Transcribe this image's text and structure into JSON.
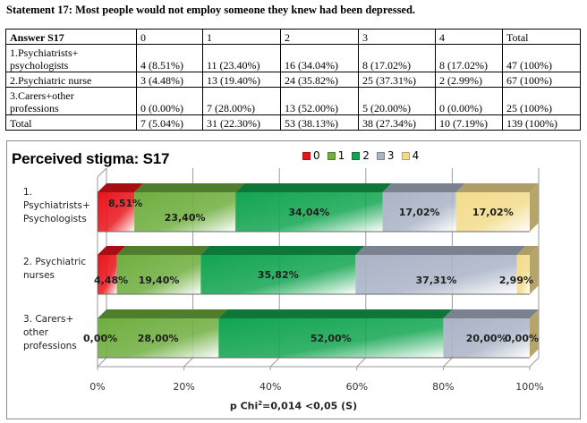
{
  "statement": "Statement 17: Most people would not employ someone they knew had been depressed.",
  "table": {
    "headers": [
      "Answer S17",
      "0",
      "1",
      "2",
      "3",
      "4",
      "Total"
    ],
    "rows": [
      {
        "label_lines": [
          "1.Psychiatrists+",
          "psychologists"
        ],
        "cells": [
          "4 (8.51%)",
          "11 (23.40%)",
          "16 (34.04%)",
          "8 (17.02%)",
          "8 (17.02%)",
          "47 (100%)"
        ]
      },
      {
        "label_lines": [
          "2.Psychiatric nurse"
        ],
        "cells": [
          "3 (4.48%)",
          "13 (19.40%)",
          "24 (35.82%)",
          "25 (37.31%)",
          "2 (2.99%)",
          "67 (100%)"
        ]
      },
      {
        "label_lines": [
          "3.Carers+other",
          "professions"
        ],
        "cells": [
          "0 (0.00%)",
          "7 (28.00%)",
          "13 (52.00%)",
          "5 (20.00%)",
          "0 (0.00%)",
          "25 (100%)"
        ]
      },
      {
        "label_lines": [
          "Total"
        ],
        "cells": [
          "7 (5.04%)",
          "31 (22.30%)",
          "53 (38.13%)",
          "38 (27.34%)",
          "10 (7.19%)",
          "139 (100%)"
        ]
      }
    ]
  },
  "chart_data": {
    "type": "bar",
    "orientation": "horizontal-stacked-100",
    "title": "Perceived stigma: S17",
    "categories": [
      [
        "1.",
        "Psychiatrists+",
        "Psychologists"
      ],
      [
        "2. Psychiatric",
        "nurses"
      ],
      [
        "3. Carers+",
        "other",
        "professions"
      ]
    ],
    "series": [
      {
        "name": "0",
        "color": "#e8141b",
        "values": [
          8.51,
          4.48,
          0.0
        ],
        "labels": [
          "8,51%",
          "4,48%",
          "0,00%"
        ]
      },
      {
        "name": "1",
        "color": "#6fae3f",
        "values": [
          23.4,
          19.4,
          28.0
        ],
        "labels": [
          "23,40%",
          "19,40%",
          "28,00%"
        ]
      },
      {
        "name": "2",
        "color": "#12a550",
        "values": [
          34.04,
          35.82,
          52.0
        ],
        "labels": [
          "34,04%",
          "35,82%",
          "52,00%"
        ]
      },
      {
        "name": "3",
        "color": "#aab4c6",
        "values": [
          17.02,
          37.31,
          20.0
        ],
        "labels": [
          "17,02%",
          "37,31%",
          "20,00%"
        ]
      },
      {
        "name": "4",
        "color": "#f2dc8c",
        "values": [
          17.02,
          2.99,
          0.0
        ],
        "labels": [
          "17,02%",
          "2,99%",
          "0,00%"
        ]
      }
    ],
    "xlim": [
      0,
      100
    ],
    "xticks": [
      "0%",
      "20%",
      "40%",
      "60%",
      "80%",
      "100%"
    ],
    "xtick_values": [
      0,
      20,
      40,
      60,
      80,
      100
    ],
    "grid": true,
    "legend": "top",
    "xlabel": "p Chi²=0,014 <0,05 (S)",
    "xlabel_parts": {
      "before": "p Chi",
      "sup": "2",
      "after": "=0,014 <0,05 (S)"
    }
  }
}
